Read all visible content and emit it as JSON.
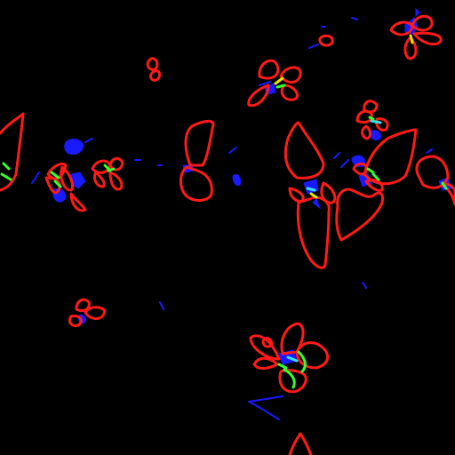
{
  "image": {
    "background_color": "#000000",
    "palette": {
      "petal_outline": "#ff1a1a",
      "stem_fill": "#1a1aff",
      "connector": "#33ff33",
      "highlight": "#33e6e6",
      "pollen": "#e6e600"
    },
    "description_items": [
      "petal-outline",
      "stem-mark",
      "leaf-connector"
    ]
  }
}
